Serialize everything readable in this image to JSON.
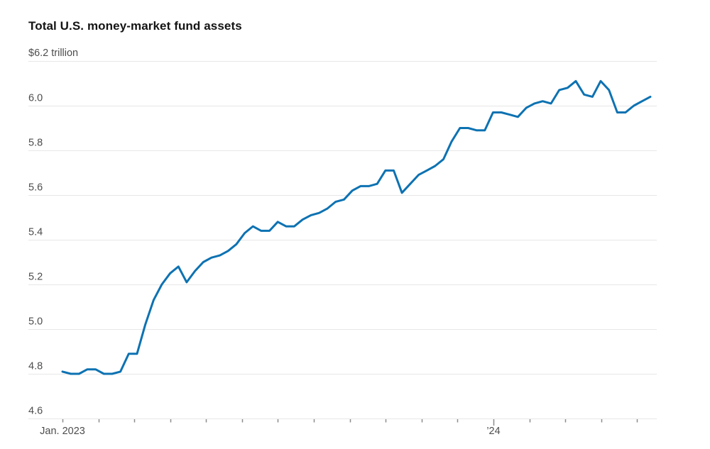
{
  "header": {
    "title": "Total U.S. money-market fund assets"
  },
  "axes": {
    "y": {
      "top_label": "$6.2 trillion",
      "top_value": 6.2,
      "tick_labels": [
        "6.0",
        "5.8",
        "5.6",
        "5.4",
        "5.2",
        "5.0",
        "4.8",
        "4.6"
      ],
      "min": 4.6,
      "max": 6.2,
      "step": 0.2
    },
    "x": {
      "labels": [
        {
          "text": "Jan. 2023",
          "month_index": 0
        },
        {
          "text": "’24",
          "month_index": 12
        }
      ],
      "month_tick_count": 17,
      "major_tick_month_index": 12
    }
  },
  "chart_data": {
    "type": "line",
    "title": "Total U.S. money-market fund assets",
    "unit": "$ trillion",
    "grid": "horizontal",
    "legend": "none",
    "ylim": [
      4.6,
      6.2
    ],
    "x_range": [
      "Jan. 2023",
      "May 2024"
    ],
    "x": [
      "2023-01-04",
      "2023-01-11",
      "2023-01-18",
      "2023-01-25",
      "2023-02-01",
      "2023-02-08",
      "2023-02-15",
      "2023-02-22",
      "2023-03-01",
      "2023-03-08",
      "2023-03-15",
      "2023-03-22",
      "2023-03-29",
      "2023-04-05",
      "2023-04-12",
      "2023-04-19",
      "2023-04-26",
      "2023-05-03",
      "2023-05-10",
      "2023-05-17",
      "2023-05-24",
      "2023-05-31",
      "2023-06-07",
      "2023-06-14",
      "2023-06-21",
      "2023-06-28",
      "2023-07-05",
      "2023-07-12",
      "2023-07-19",
      "2023-07-26",
      "2023-08-02",
      "2023-08-09",
      "2023-08-16",
      "2023-08-23",
      "2023-08-30",
      "2023-09-06",
      "2023-09-13",
      "2023-09-20",
      "2023-09-27",
      "2023-10-04",
      "2023-10-11",
      "2023-10-18",
      "2023-10-25",
      "2023-11-01",
      "2023-11-08",
      "2023-11-15",
      "2023-11-22",
      "2023-11-29",
      "2023-12-06",
      "2023-12-13",
      "2023-12-20",
      "2023-12-27",
      "2024-01-03",
      "2024-01-10",
      "2024-01-17",
      "2024-01-24",
      "2024-01-31",
      "2024-02-07",
      "2024-02-14",
      "2024-02-21",
      "2024-02-28",
      "2024-03-06",
      "2024-03-13",
      "2024-03-20",
      "2024-03-27",
      "2024-04-03",
      "2024-04-10",
      "2024-04-17",
      "2024-04-24",
      "2024-05-01",
      "2024-05-08",
      "2024-05-15"
    ],
    "series": [
      {
        "name": "Total U.S. money-market fund assets",
        "color": "#0d72b2",
        "values": [
          4.81,
          4.8,
          4.8,
          4.82,
          4.82,
          4.8,
          4.8,
          4.81,
          4.89,
          4.89,
          5.02,
          5.13,
          5.2,
          5.25,
          5.28,
          5.21,
          5.26,
          5.3,
          5.32,
          5.33,
          5.35,
          5.38,
          5.43,
          5.46,
          5.44,
          5.44,
          5.48,
          5.46,
          5.46,
          5.49,
          5.51,
          5.52,
          5.54,
          5.57,
          5.58,
          5.62,
          5.64,
          5.64,
          5.65,
          5.71,
          5.71,
          5.61,
          5.65,
          5.69,
          5.71,
          5.73,
          5.76,
          5.84,
          5.9,
          5.9,
          5.89,
          5.89,
          5.97,
          5.97,
          5.96,
          5.95,
          5.99,
          6.01,
          6.02,
          6.01,
          6.07,
          6.08,
          6.11,
          6.05,
          6.04,
          6.11,
          6.07,
          5.97,
          5.97,
          6.0,
          6.02,
          6.04
        ]
      }
    ]
  },
  "colors": {
    "line": "#0d72b2",
    "grid": "#e7e7e7",
    "tick": "#8c8c8c",
    "label": "#4d4d4d",
    "title": "#141414",
    "background": "#ffffff"
  }
}
